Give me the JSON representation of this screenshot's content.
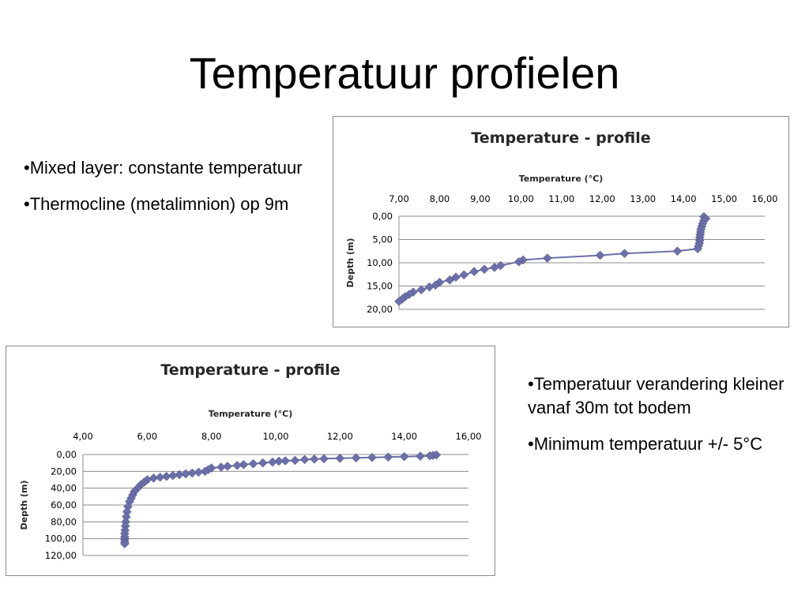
{
  "slide": {
    "title": "Temperatuur profielen",
    "left_bullets": [
      "•Mixed layer: constante temperatuur",
      "•Thermocline (metalimnion) op 9m"
    ],
    "right_bullets": [
      "•Temperatuur verandering kleiner vanaf 30m tot bodem",
      "•Minimum temperatuur +/- 5°C"
    ]
  },
  "colors": {
    "series": "#6C6FA8"
  },
  "chart_data": [
    {
      "type": "line",
      "title": "Temperature - profile",
      "xlabel": "Temperature (°C)",
      "ylabel": "Depth (m)",
      "xlim": [
        7,
        16
      ],
      "ylim": [
        0,
        20
      ],
      "y_inverted": true,
      "x_axis_position": "top",
      "grid": "horizontal",
      "xticks": [
        "7,00",
        "8,00",
        "9,00",
        "10,00",
        "11,00",
        "12,00",
        "13,00",
        "14,00",
        "15,00",
        "16,00"
      ],
      "yticks": [
        "0,00",
        "5,00",
        "10,00",
        "15,00",
        "20,00"
      ],
      "marker": "diamond",
      "series": [
        {
          "x": [
            14.5,
            14.55,
            14.5,
            14.47,
            14.45,
            14.43,
            14.42,
            14.41,
            14.4,
            14.4,
            14.39,
            14.37,
            14.35,
            13.85,
            12.55,
            11.95,
            10.65,
            10.05,
            9.95,
            9.5,
            9.35,
            9.1,
            8.85,
            8.6,
            8.4,
            8.25,
            8.0,
            7.9,
            7.75,
            7.55,
            7.35,
            7.25,
            7.15,
            7.08,
            7.0
          ],
          "y": [
            0.1,
            0.5,
            1.0,
            1.6,
            2.2,
            2.8,
            3.4,
            4.0,
            4.6,
            5.2,
            5.8,
            6.4,
            7.0,
            7.5,
            8.0,
            8.4,
            9.0,
            9.4,
            9.8,
            10.6,
            11.0,
            11.4,
            11.9,
            12.6,
            13.1,
            13.7,
            14.2,
            14.8,
            15.2,
            15.8,
            16.3,
            16.8,
            17.3,
            17.8,
            18.3
          ]
        }
      ]
    },
    {
      "type": "line",
      "title": "Temperature - profile",
      "xlabel": "Temperature (°C)",
      "ylabel": "Depth (m)",
      "xlim": [
        4,
        16
      ],
      "ylim": [
        0,
        120
      ],
      "y_inverted": true,
      "x_axis_position": "top",
      "grid": "horizontal",
      "xticks": [
        "4,00",
        "6,00",
        "8,00",
        "10,00",
        "12,00",
        "14,00",
        "16,00"
      ],
      "yticks": [
        "0,00",
        "20,00",
        "40,00",
        "60,00",
        "80,00",
        "100,00",
        "120,00"
      ],
      "marker": "diamond",
      "series": [
        {
          "x": [
            15.0,
            14.9,
            14.8,
            14.5,
            14.0,
            13.5,
            13.0,
            12.5,
            12.0,
            11.5,
            11.2,
            10.9,
            10.6,
            10.3,
            10.1,
            9.9,
            9.6,
            9.3,
            9.0,
            8.8,
            8.5,
            8.3,
            8.0,
            7.9,
            7.8,
            7.6,
            7.4,
            7.2,
            7.0,
            6.8,
            6.6,
            6.4,
            6.2,
            6.0,
            5.9,
            5.8,
            5.7,
            5.6,
            5.55,
            5.5,
            5.45,
            5.4,
            5.37,
            5.35,
            5.33,
            5.32,
            5.31,
            5.3,
            5.3,
            5.3,
            5.3,
            5.3
          ],
          "y": [
            0.5,
            1.0,
            1.5,
            2.0,
            2.5,
            3.0,
            3.5,
            4.0,
            4.5,
            5.0,
            5.5,
            6.0,
            7.0,
            7.5,
            8.0,
            9.0,
            10.0,
            11.0,
            12.0,
            13.0,
            14.0,
            15.0,
            16.0,
            18.0,
            20.0,
            21.0,
            22.0,
            23.0,
            24.0,
            25.0,
            26.0,
            27.0,
            28.0,
            30.0,
            33.0,
            36.0,
            40.0,
            44.0,
            48.0,
            52.0,
            56.0,
            62.0,
            68.0,
            74.0,
            80.0,
            85.0,
            90.0,
            94.0,
            98.0,
            101.0,
            104.0,
            106.0
          ]
        }
      ]
    }
  ]
}
